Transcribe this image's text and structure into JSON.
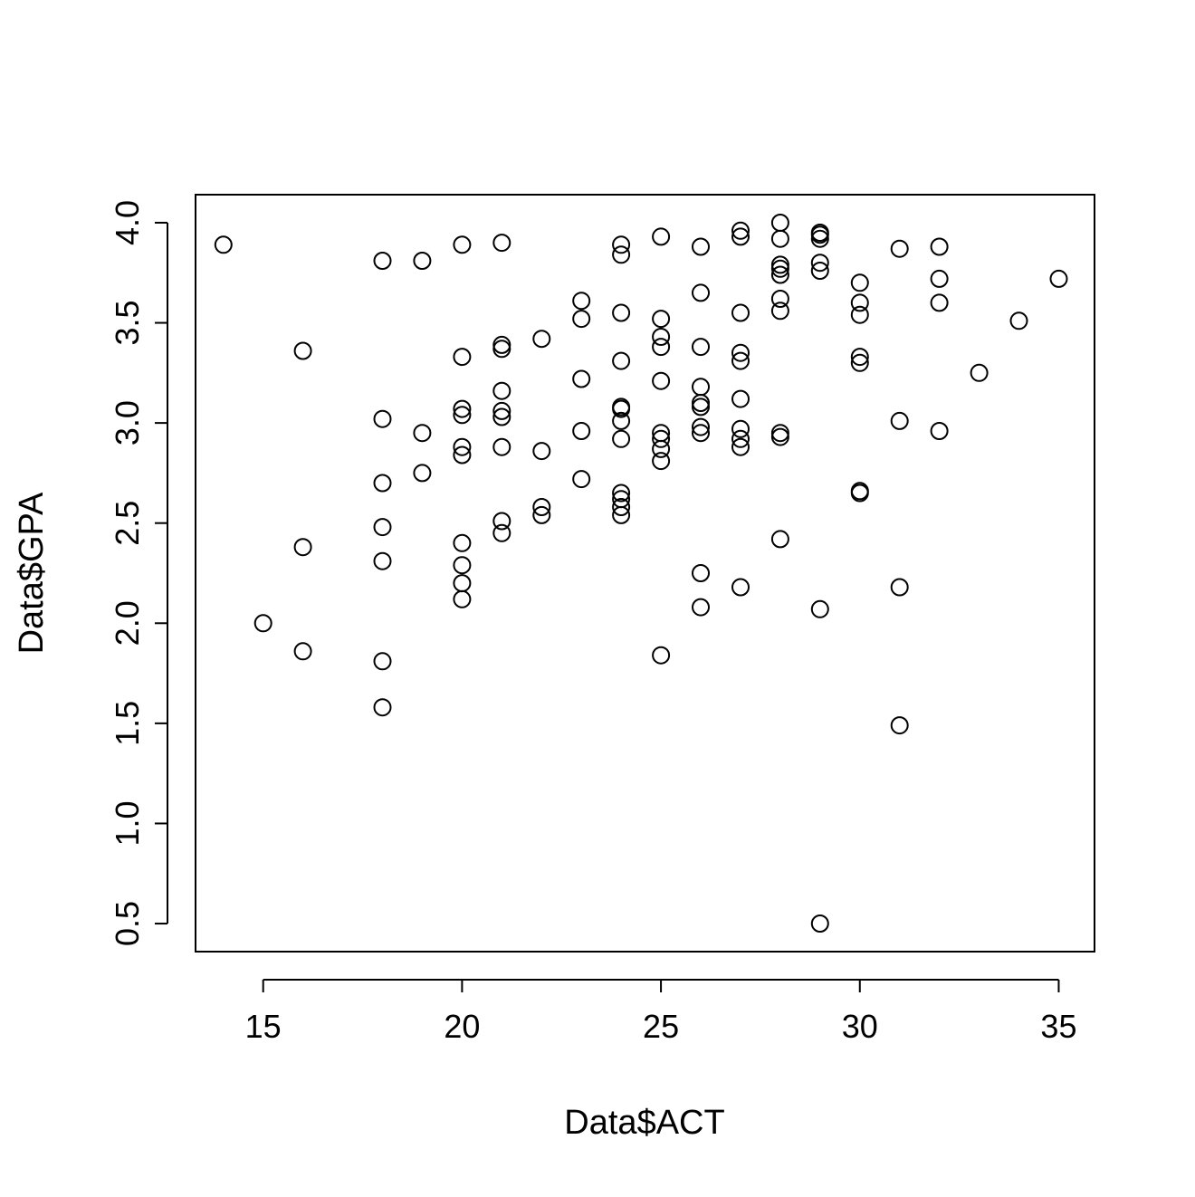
{
  "chart_data": {
    "type": "scatter",
    "title": "",
    "xlabel": "Data$ACT",
    "ylabel": "Data$GPA",
    "xlim": [
      13.3,
      35.9
    ],
    "ylim": [
      0.36,
      4.14
    ],
    "xticks": [
      15,
      20,
      25,
      30,
      35
    ],
    "yticks": [
      0.5,
      1.0,
      1.5,
      2.0,
      2.5,
      3.0,
      3.5,
      4.0
    ],
    "xtick_labels": [
      "15",
      "20",
      "25",
      "30",
      "35"
    ],
    "ytick_labels": [
      "0.5",
      "1.0",
      "1.5",
      "2.0",
      "2.5",
      "3.0",
      "3.5",
      "4.0"
    ],
    "grid": false,
    "legend": "none",
    "marker": "open-circle",
    "color": "#000000",
    "points": [
      [
        14,
        3.89
      ],
      [
        15,
        2.0
      ],
      [
        16,
        3.36
      ],
      [
        16,
        2.38
      ],
      [
        16,
        1.86
      ],
      [
        18,
        3.81
      ],
      [
        18,
        3.02
      ],
      [
        18,
        2.7
      ],
      [
        18,
        2.48
      ],
      [
        18,
        2.31
      ],
      [
        18,
        1.81
      ],
      [
        18,
        1.58
      ],
      [
        19,
        3.81
      ],
      [
        19,
        2.95
      ],
      [
        19,
        2.75
      ],
      [
        20,
        3.89
      ],
      [
        20,
        3.33
      ],
      [
        20,
        3.07
      ],
      [
        20,
        3.04
      ],
      [
        20,
        2.88
      ],
      [
        20,
        2.84
      ],
      [
        20,
        2.4
      ],
      [
        20,
        2.29
      ],
      [
        20,
        2.2
      ],
      [
        20,
        2.12
      ],
      [
        21,
        3.9
      ],
      [
        21,
        3.39
      ],
      [
        21,
        3.37
      ],
      [
        21,
        3.16
      ],
      [
        21,
        3.06
      ],
      [
        21,
        3.03
      ],
      [
        21,
        2.88
      ],
      [
        21,
        2.51
      ],
      [
        21,
        2.45
      ],
      [
        22,
        3.42
      ],
      [
        22,
        2.86
      ],
      [
        22,
        2.58
      ],
      [
        22,
        2.54
      ],
      [
        23,
        3.61
      ],
      [
        23,
        3.52
      ],
      [
        23,
        3.22
      ],
      [
        23,
        2.96
      ],
      [
        23,
        2.72
      ],
      [
        24,
        3.89
      ],
      [
        24,
        3.84
      ],
      [
        24,
        3.55
      ],
      [
        24,
        3.31
      ],
      [
        24,
        3.08
      ],
      [
        24,
        3.07
      ],
      [
        24,
        3.01
      ],
      [
        24,
        2.92
      ],
      [
        24,
        2.65
      ],
      [
        24,
        2.62
      ],
      [
        24,
        2.58
      ],
      [
        24,
        2.54
      ],
      [
        25,
        3.93
      ],
      [
        25,
        3.52
      ],
      [
        25,
        3.43
      ],
      [
        25,
        3.38
      ],
      [
        25,
        3.21
      ],
      [
        25,
        2.95
      ],
      [
        25,
        2.92
      ],
      [
        25,
        2.87
      ],
      [
        25,
        2.81
      ],
      [
        25,
        1.84
      ],
      [
        26,
        3.88
      ],
      [
        26,
        3.65
      ],
      [
        26,
        3.38
      ],
      [
        26,
        3.18
      ],
      [
        26,
        3.1
      ],
      [
        26,
        3.08
      ],
      [
        26,
        2.98
      ],
      [
        26,
        2.95
      ],
      [
        26,
        2.25
      ],
      [
        26,
        2.08
      ],
      [
        27,
        3.96
      ],
      [
        27,
        3.93
      ],
      [
        27,
        3.55
      ],
      [
        27,
        3.35
      ],
      [
        27,
        3.31
      ],
      [
        27,
        3.12
      ],
      [
        27,
        2.97
      ],
      [
        27,
        2.92
      ],
      [
        27,
        2.88
      ],
      [
        27,
        2.18
      ],
      [
        28,
        4.0
      ],
      [
        28,
        3.92
      ],
      [
        28,
        3.79
      ],
      [
        28,
        3.77
      ],
      [
        28,
        3.74
      ],
      [
        28,
        3.62
      ],
      [
        28,
        3.56
      ],
      [
        28,
        2.95
      ],
      [
        28,
        2.93
      ],
      [
        28,
        2.42
      ],
      [
        29,
        3.95
      ],
      [
        29,
        3.94
      ],
      [
        29,
        3.92
      ],
      [
        29,
        3.8
      ],
      [
        29,
        3.76
      ],
      [
        29,
        2.07
      ],
      [
        29,
        0.5
      ],
      [
        30,
        3.7
      ],
      [
        30,
        3.6
      ],
      [
        30,
        3.54
      ],
      [
        30,
        3.33
      ],
      [
        30,
        3.3
      ],
      [
        30,
        2.66
      ],
      [
        30,
        2.65
      ],
      [
        31,
        3.87
      ],
      [
        31,
        3.01
      ],
      [
        31,
        2.18
      ],
      [
        31,
        1.49
      ],
      [
        32,
        3.88
      ],
      [
        32,
        3.72
      ],
      [
        32,
        3.6
      ],
      [
        32,
        2.96
      ],
      [
        33,
        3.25
      ],
      [
        34,
        3.51
      ],
      [
        35,
        3.72
      ]
    ]
  }
}
